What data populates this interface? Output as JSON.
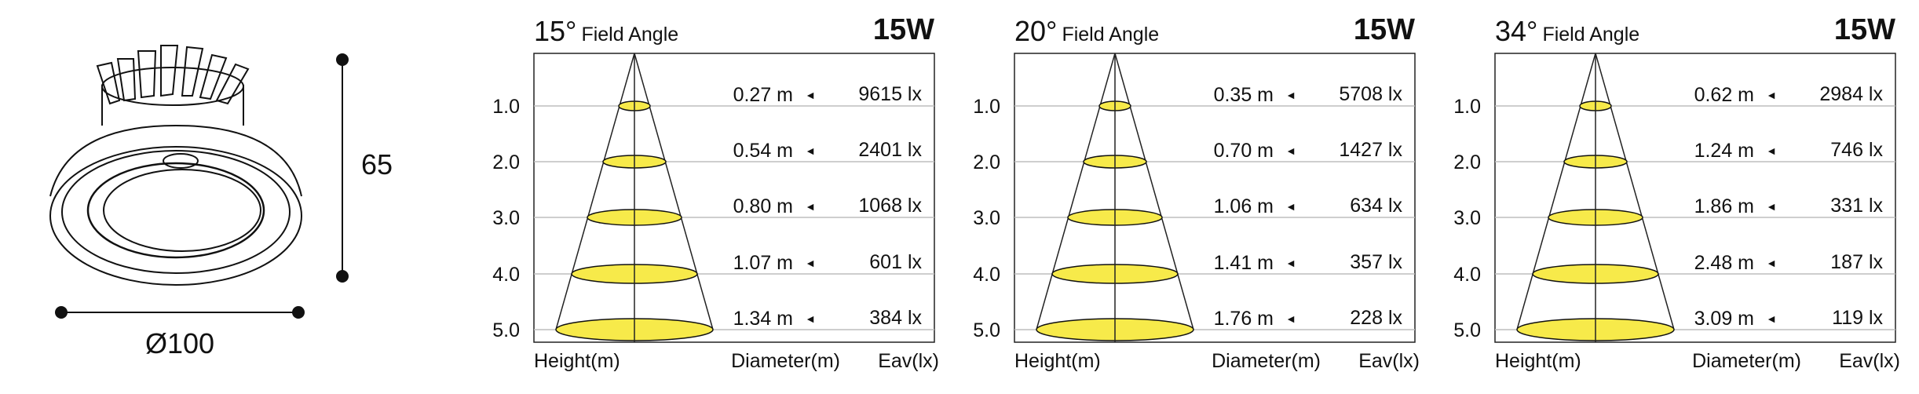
{
  "product": {
    "height_label": "65",
    "diameter_label": "Ø100"
  },
  "charts_common": {
    "height_axis_label": "Height(m)",
    "diameter_axis_label": "Diameter(m)",
    "eav_axis_label": "Eav(lx)",
    "height_ticks": [
      "1.0",
      "2.0",
      "3.0",
      "4.0",
      "5.0"
    ],
    "arrow_glyph": "◄",
    "beam_fill_color": "#f7ea4a"
  },
  "chart_data": [
    {
      "type": "table",
      "angle": "15°",
      "angle_label": "Field Angle",
      "power": "15W",
      "heights": [
        1.0,
        2.0,
        3.0,
        4.0,
        5.0
      ],
      "diameters": [
        "0.27 m",
        "0.54 m",
        "0.80 m",
        "1.07 m",
        "1.34 m"
      ],
      "eav": [
        "9615 lx",
        "2401 lx",
        "1068 lx",
        "601 lx",
        "384 lx"
      ]
    },
    {
      "type": "table",
      "angle": "20°",
      "angle_label": "Field Angle",
      "power": "15W",
      "heights": [
        1.0,
        2.0,
        3.0,
        4.0,
        5.0
      ],
      "diameters": [
        "0.35 m",
        "0.70 m",
        "1.06 m",
        "1.41 m",
        "1.76 m"
      ],
      "eav": [
        "5708 lx",
        "1427 lx",
        "634 lx",
        "357 lx",
        "228 lx"
      ]
    },
    {
      "type": "table",
      "angle": "34°",
      "angle_label": "Field Angle",
      "power": "15W",
      "heights": [
        1.0,
        2.0,
        3.0,
        4.0,
        5.0
      ],
      "diameters": [
        "0.62 m",
        "1.24 m",
        "1.86 m",
        "2.48 m",
        "3.09 m"
      ],
      "eav": [
        "2984 lx",
        "746 lx",
        "331 lx",
        "187 lx",
        "119 lx"
      ]
    }
  ]
}
